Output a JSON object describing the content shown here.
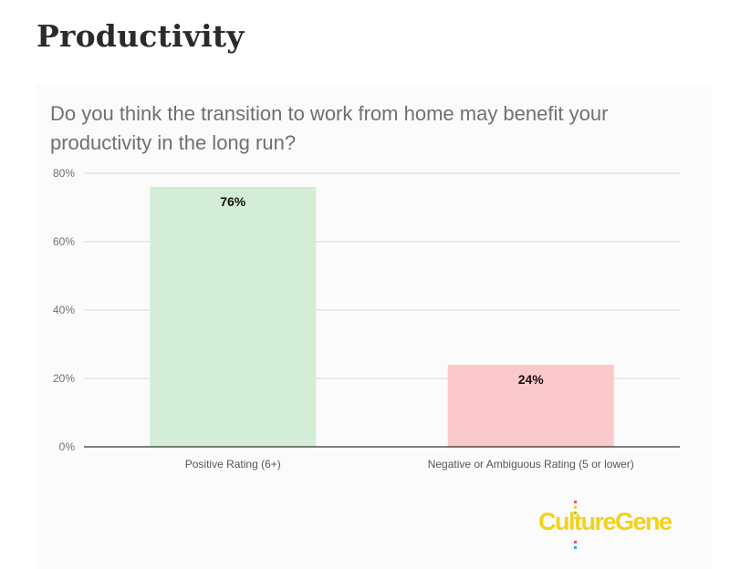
{
  "page": {
    "heading": "Productivity"
  },
  "chart_data": {
    "type": "bar",
    "title": "Do you think the transition to work from home may benefit your productivity in the long run?",
    "categories": [
      "Positive Rating (6+)",
      "Negative or Ambiguous Rating (5 or lower)"
    ],
    "values": [
      76,
      24
    ],
    "data_labels": [
      "76%",
      "24%"
    ],
    "bar_colors": [
      "#d4edd6",
      "#fcc9cb"
    ],
    "ylim": [
      0,
      80
    ],
    "yticks": [
      0,
      20,
      40,
      60,
      80
    ],
    "ytick_labels": [
      "0%",
      "20%",
      "40%",
      "60%",
      "80%"
    ],
    "grid": true,
    "legend": "none"
  },
  "branding": {
    "logo_text": "CultureGene",
    "logo_color": "#f2d21b"
  }
}
